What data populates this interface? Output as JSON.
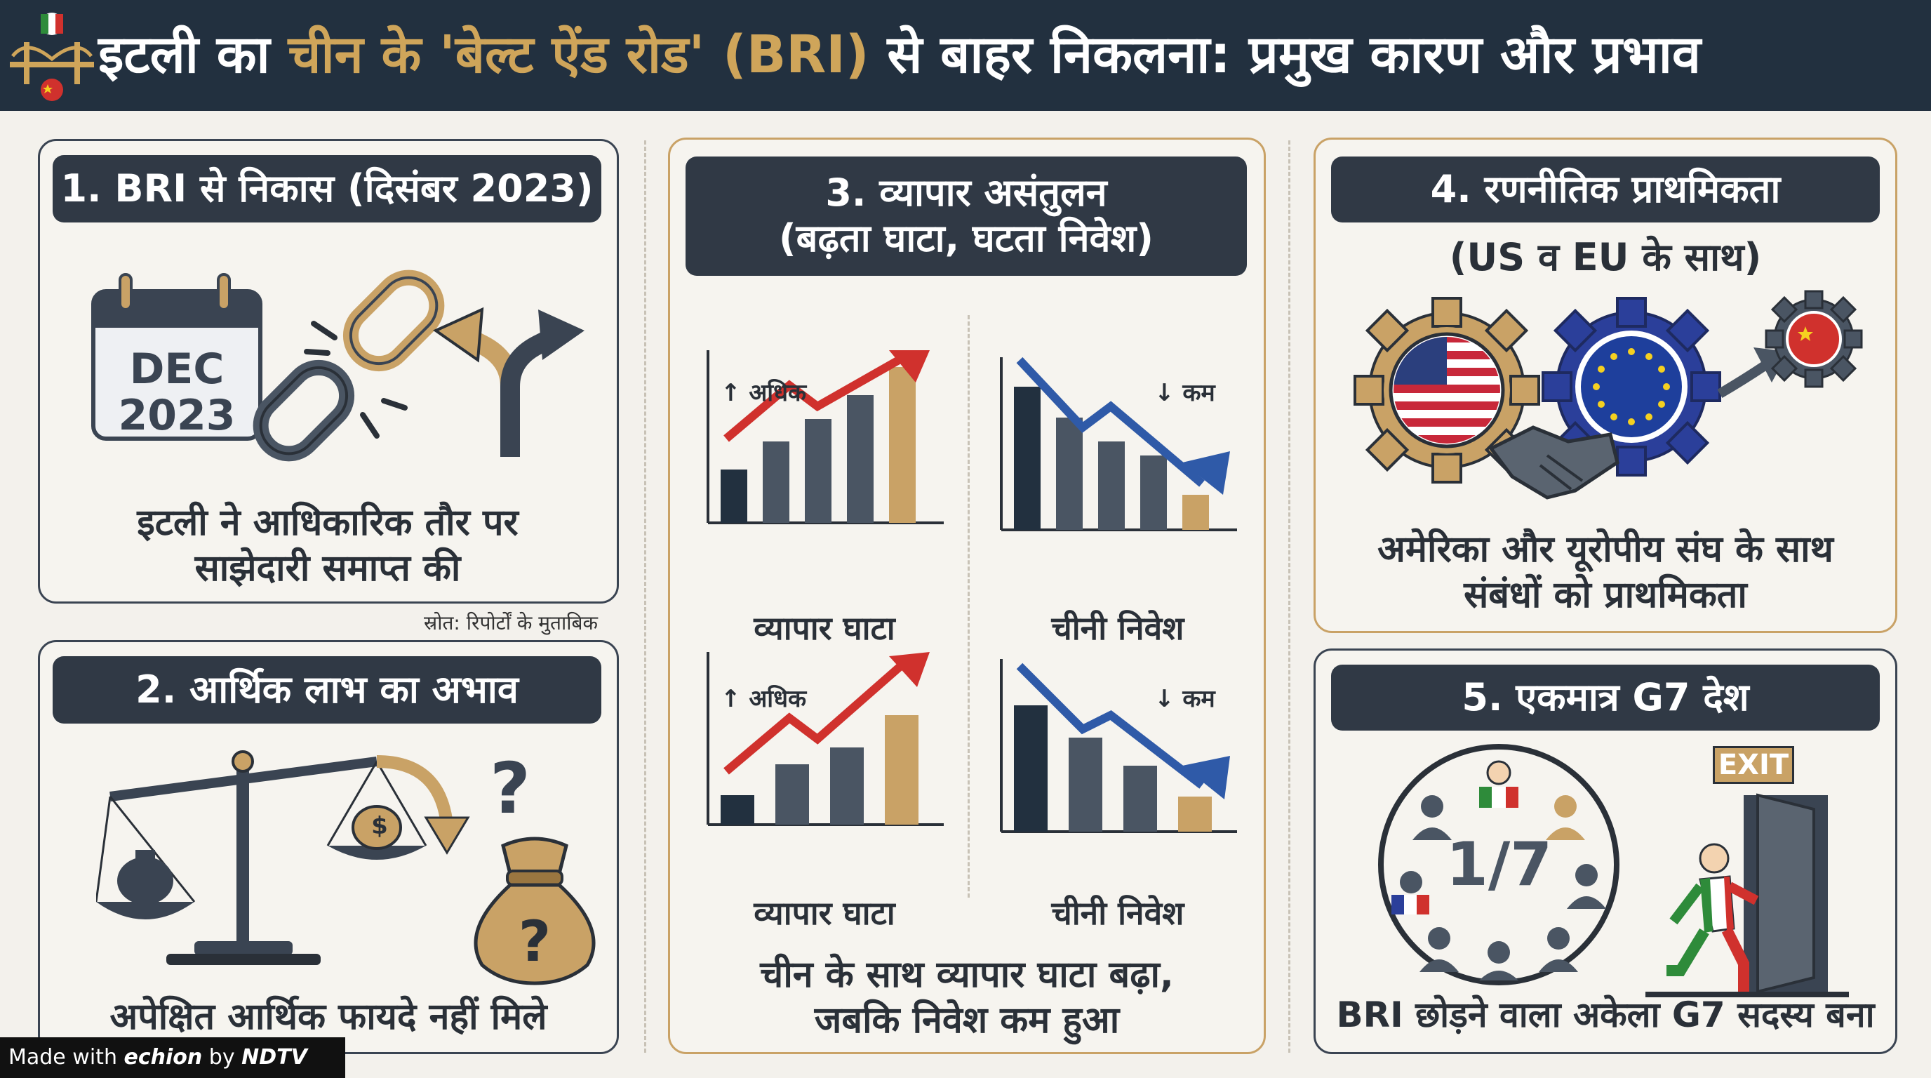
{
  "header": {
    "title_part1": "इटली का ",
    "title_part2": "चीन के 'बेल्ट ऐंड रोड' (BRI)",
    "title_part3": " से बाहर निकलना: प्रमुख कारण और प्रभाव",
    "icon": "italy-china-bridge-icon"
  },
  "panel1": {
    "title": "1. BRI से निकास (दिसंबर 2023)",
    "calendar_month": "DEC",
    "calendar_year": "2023",
    "caption": "इटली ने आधिकारिक तौर पर साझेदारी समाप्त की",
    "source_note": "स्रोत: रिपोर्टों के मुताबिक"
  },
  "panel2": {
    "title": "2. आर्थिक लाभ का अभाव",
    "dollar_symbol": "$",
    "question_mark": "?",
    "caption": "अपेक्षित आर्थिक फायदे नहीं मिले"
  },
  "panel3": {
    "title_line1": "3. व्यापार असंतुलन",
    "title_line2": "(बढ़ता घाटा, घटता निवेश)",
    "charts": [
      {
        "trend": "↑ अधिक",
        "label": "व्यापार घाटा",
        "direction": "up"
      },
      {
        "trend": "↓ कम",
        "label": "चीनी निवेश",
        "direction": "down"
      },
      {
        "trend": "↑ अधिक",
        "label": "व्यापार घाटा",
        "direction": "up"
      },
      {
        "trend": "↓ कम",
        "label": "चीनी निवेश",
        "direction": "down"
      }
    ],
    "caption": "चीन के साथ व्यापार घाटा बढ़ा, जबकि निवेश कम हुआ"
  },
  "panel4": {
    "title": "4. रणनीतिक प्राथमिकता",
    "subtitle": "(US व EU के साथ)",
    "caption": "अमेरिका और यूरोपीय संघ के साथ संबंधों को प्राथमिकता"
  },
  "panel5": {
    "title": "5. एकमात्र G7 देश",
    "fraction": "1/7",
    "exit_sign": "EXIT",
    "caption": "BRI छोड़ने वाला अकेला G7 सदस्य बना"
  },
  "footer": {
    "made_with": "Made with ",
    "brand": "echion",
    "by": " by ",
    "company": "NDTV"
  },
  "colors": {
    "navy": "#22303f",
    "gold": "#c9a266",
    "red": "#d0312d",
    "blue": "#2f5aa8",
    "slate": "#4a5563"
  }
}
